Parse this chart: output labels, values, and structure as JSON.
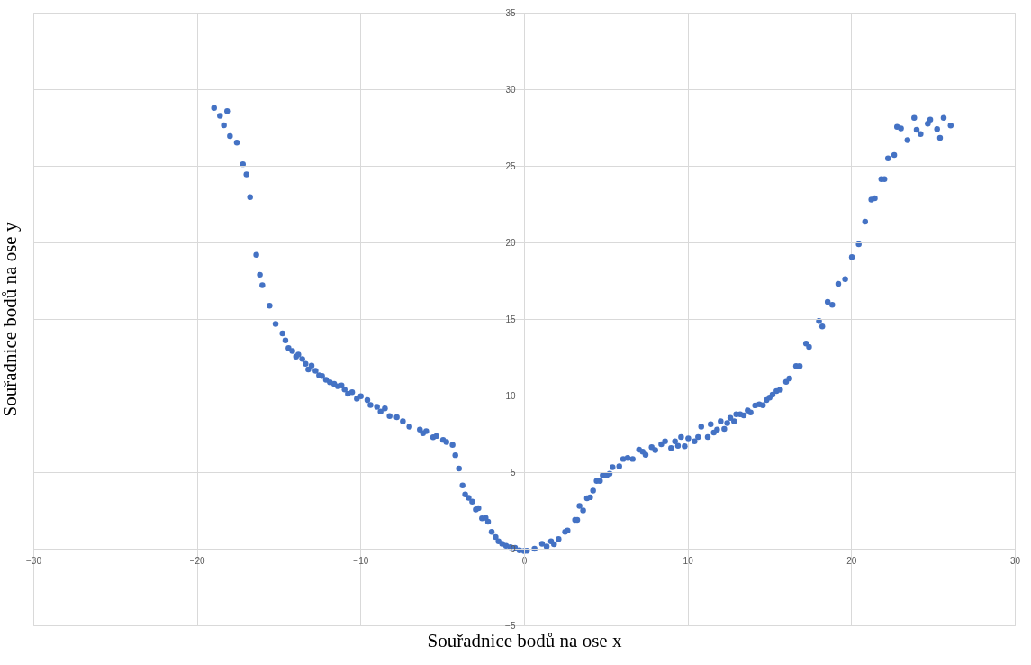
{
  "chart_data": {
    "type": "scatter",
    "xlabel": "Souřadnice bodů na ose x",
    "ylabel": "Souřadnice bodů na ose y",
    "xlim": [
      -30,
      30
    ],
    "xticks": [
      -30,
      -20,
      -10,
      0,
      10,
      20,
      30
    ],
    "ylim": [
      -5,
      35
    ],
    "yticks": [
      -5,
      0,
      5,
      10,
      15,
      20,
      25,
      30,
      35
    ],
    "grid": true,
    "marker": "circle",
    "series": [
      {
        "color": "#4472c4",
        "x": [
          -18.95,
          -18.59,
          -18.15,
          -18.35,
          -17.98,
          -17.56,
          -17.19,
          -16.97,
          -16.75,
          -16.37,
          -16.15,
          -16.0,
          -15.56,
          -15.19,
          -14.77,
          -14.59,
          -14.4,
          -14.17,
          -13.94,
          -13.8,
          -13.56,
          -13.36,
          -13.19,
          -12.99,
          -12.75,
          -12.53,
          -12.35,
          -12.11,
          -11.87,
          -11.61,
          -11.38,
          -11.16,
          -10.97,
          -10.77,
          -10.51,
          -10.22,
          -9.98,
          -9.58,
          -9.39,
          -8.99,
          -8.77,
          -8.51,
          -8.22,
          -7.78,
          -7.41,
          -7.01,
          -6.37,
          -6.18,
          -5.98,
          -5.56,
          -5.36,
          -4.95,
          -4.75,
          -4.37,
          -4.2,
          -3.98,
          -3.76,
          -3.6,
          -3.39,
          -3.17,
          -2.95,
          -2.79,
          -2.57,
          -2.35,
          -2.2,
          -1.98,
          -1.74,
          -1.56,
          -1.34,
          -1.1,
          -0.83,
          -0.55,
          -0.28,
          0.0,
          0.18,
          0.64,
          1.1,
          1.38,
          1.65,
          1.83,
          2.11,
          2.51,
          2.66,
          3.12,
          3.25,
          3.39,
          3.61,
          3.85,
          4.04,
          4.22,
          4.44,
          4.64,
          4.81,
          5.05,
          5.23,
          5.41,
          5.82,
          6.06,
          6.33,
          6.64,
          7.03,
          7.25,
          7.43,
          7.8,
          8.02,
          8.39,
          8.62,
          8.99,
          9.23,
          9.41,
          9.6,
          9.82,
          10.04,
          10.42,
          10.64,
          10.83,
          11.23,
          11.41,
          11.6,
          11.8,
          12.02,
          12.24,
          12.42,
          12.61,
          12.84,
          12.97,
          13.21,
          13.43,
          13.67,
          13.85,
          14.13,
          14.38,
          14.6,
          14.82,
          15.01,
          15.19,
          15.43,
          15.65,
          16.02,
          16.22,
          16.63,
          16.85,
          17.24,
          17.42,
          18.03,
          18.23,
          18.56,
          18.84,
          19.21,
          19.63,
          20.04,
          20.46,
          20.85,
          21.23,
          21.44,
          21.84,
          22.03,
          22.25,
          22.63,
          22.8,
          23.04,
          23.44,
          23.85,
          24.0,
          24.24,
          24.68,
          24.83,
          25.25,
          25.43,
          25.65,
          26.08
        ],
        "values": [
          28.78,
          28.26,
          28.57,
          27.65,
          26.94,
          26.51,
          25.11,
          24.44,
          22.96,
          19.19,
          17.89,
          17.21,
          15.87,
          14.68,
          14.06,
          13.6,
          13.1,
          12.91,
          12.55,
          12.68,
          12.39,
          12.07,
          11.7,
          11.95,
          11.62,
          11.32,
          11.28,
          11.03,
          10.87,
          10.76,
          10.61,
          10.66,
          10.39,
          10.12,
          10.22,
          9.8,
          9.95,
          9.7,
          9.38,
          9.26,
          8.95,
          9.16,
          8.66,
          8.59,
          8.32,
          7.97,
          7.78,
          7.55,
          7.68,
          7.28,
          7.36,
          7.11,
          6.97,
          6.78,
          6.11,
          5.24,
          4.13,
          3.55,
          3.32,
          3.07,
          2.56,
          2.65,
          1.98,
          2.02,
          1.77,
          1.1,
          0.77,
          0.48,
          0.33,
          0.19,
          0.1,
          0.06,
          -0.1,
          -0.15,
          -0.13,
          0.0,
          0.33,
          0.15,
          0.48,
          0.29,
          0.63,
          1.1,
          1.19,
          1.88,
          1.88,
          2.79,
          2.5,
          3.3,
          3.36,
          3.8,
          4.42,
          4.42,
          4.8,
          4.8,
          4.9,
          5.32,
          5.38,
          5.86,
          5.92,
          5.86,
          6.47,
          6.34,
          6.13,
          6.63,
          6.44,
          6.82,
          7.01,
          6.57,
          7.01,
          6.72,
          7.3,
          6.69,
          7.2,
          7.01,
          7.3,
          7.97,
          7.3,
          8.13,
          7.59,
          7.78,
          8.32,
          7.82,
          8.2,
          8.55,
          8.32,
          8.78,
          8.78,
          8.7,
          9.03,
          8.9,
          9.36,
          9.42,
          9.37,
          9.71,
          9.87,
          10.06,
          10.29,
          10.38,
          10.9,
          11.12,
          11.92,
          11.92,
          13.4,
          13.17,
          14.87,
          14.52,
          16.12,
          15.92,
          17.29,
          17.6,
          19.04,
          19.88,
          21.35,
          22.79,
          22.88,
          24.13,
          24.13,
          25.48,
          25.71,
          27.54,
          27.44,
          26.67,
          28.13,
          27.35,
          27.08,
          27.75,
          28.02,
          27.4,
          26.83,
          28.13,
          27.63
        ]
      }
    ]
  }
}
